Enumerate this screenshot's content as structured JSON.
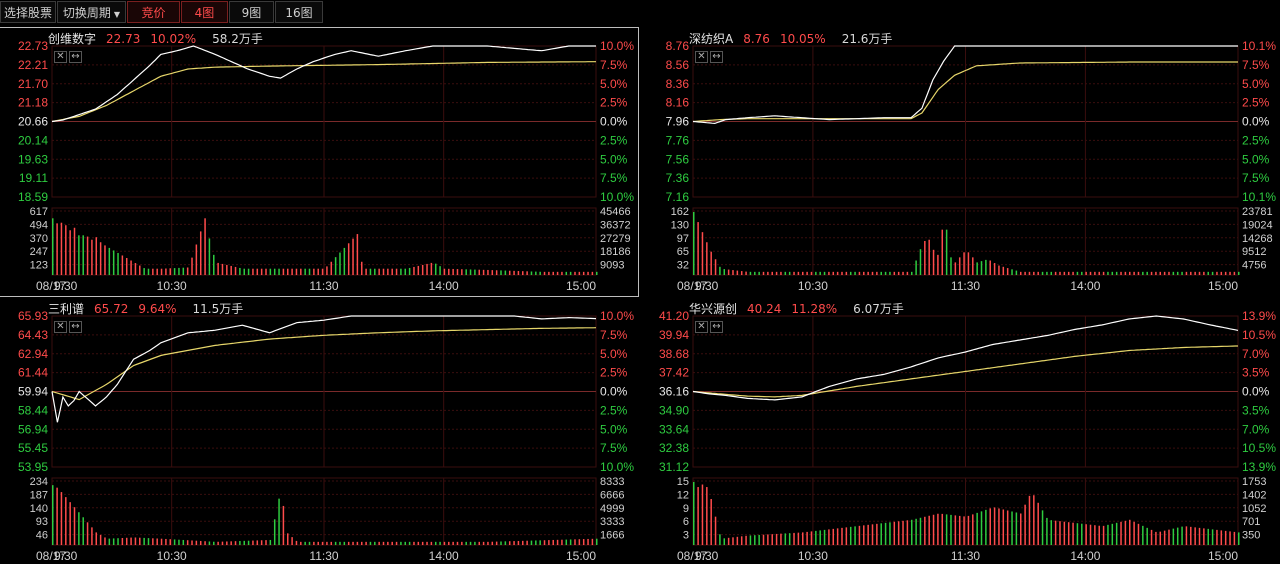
{
  "toolbar": {
    "select_stock": "选择股票",
    "switch_period": "切换周期",
    "auction": "竞价",
    "grid4": "4图",
    "grid9": "9图",
    "grid16": "16图"
  },
  "colors": {
    "up": "#ff4b4b",
    "down": "#2ecc40",
    "price_line": "#ffffff",
    "avg_line": "#e6d66a",
    "grid": "#3a0e0e"
  },
  "time_axis": {
    "date": "08/17",
    "labels": [
      "9:30",
      "10:30",
      "11:30",
      "14:00",
      "15:00"
    ]
  },
  "panels": [
    {
      "name": "创维数字",
      "price": "22.73",
      "change_pct": "10.02%",
      "volume": "58.2万手",
      "price_axis": [
        "22.73",
        "22.21",
        "21.70",
        "21.18",
        "20.66",
        "20.14",
        "19.63",
        "19.11",
        "18.59"
      ],
      "pct_axis": [
        "10.0%",
        "7.5%",
        "5.0%",
        "2.5%",
        "0.0%",
        "2.5%",
        "5.0%",
        "7.5%",
        "10.0%"
      ],
      "vol_axis_left": [
        "617",
        "494",
        "370",
        "247",
        "123"
      ],
      "vol_axis_right": [
        "45466",
        "36372",
        "27279",
        "18186",
        "9093"
      ],
      "selected": true,
      "series": {
        "price": [
          [
            0,
            20.66
          ],
          [
            2,
            20.7
          ],
          [
            5,
            20.85
          ],
          [
            8,
            21.0
          ],
          [
            10,
            21.2
          ],
          [
            12,
            21.4
          ],
          [
            15,
            21.8
          ],
          [
            18,
            22.2
          ],
          [
            20,
            22.5
          ],
          [
            23,
            22.6
          ],
          [
            26,
            22.73
          ],
          [
            30,
            22.5
          ],
          [
            33,
            22.3
          ],
          [
            36,
            22.1
          ],
          [
            40,
            21.9
          ],
          [
            42,
            21.85
          ],
          [
            45,
            22.1
          ],
          [
            48,
            22.3
          ],
          [
            52,
            22.5
          ],
          [
            55,
            22.6
          ],
          [
            60,
            22.45
          ],
          [
            65,
            22.6
          ],
          [
            70,
            22.73
          ],
          [
            80,
            22.73
          ],
          [
            90,
            22.6
          ],
          [
            95,
            22.73
          ],
          [
            100,
            22.73
          ]
        ],
        "avg": [
          [
            0,
            20.66
          ],
          [
            5,
            20.8
          ],
          [
            10,
            21.1
          ],
          [
            15,
            21.5
          ],
          [
            20,
            21.9
          ],
          [
            25,
            22.1
          ],
          [
            30,
            22.15
          ],
          [
            40,
            22.18
          ],
          [
            60,
            22.22
          ],
          [
            80,
            22.28
          ],
          [
            100,
            22.3
          ]
        ],
        "vol": [
          [
            0,
            0.9
          ],
          [
            1,
            0.8
          ],
          [
            2,
            0.85
          ],
          [
            3,
            0.7
          ],
          [
            4,
            0.75
          ],
          [
            5,
            0.6
          ],
          [
            6,
            0.65
          ],
          [
            7,
            0.55
          ],
          [
            8,
            0.6
          ],
          [
            9,
            0.5
          ],
          [
            10,
            0.45
          ],
          [
            11,
            0.4
          ],
          [
            12,
            0.35
          ],
          [
            13,
            0.3
          ],
          [
            14,
            0.25
          ],
          [
            15,
            0.2
          ],
          [
            16,
            0.15
          ],
          [
            17,
            0.1
          ],
          [
            20,
            0.1
          ],
          [
            25,
            0.12
          ],
          [
            28,
            0.9
          ],
          [
            29,
            0.5
          ],
          [
            30,
            0.2
          ],
          [
            35,
            0.1
          ],
          [
            50,
            0.1
          ],
          [
            56,
            0.65
          ],
          [
            57,
            0.1
          ],
          [
            65,
            0.1
          ],
          [
            70,
            0.2
          ],
          [
            72,
            0.1
          ],
          [
            80,
            0.08
          ],
          [
            90,
            0.05
          ],
          [
            100,
            0.05
          ]
        ]
      }
    },
    {
      "name": "深纺织A",
      "price": "8.76",
      "change_pct": "10.05%",
      "volume": "21.6万手",
      "price_axis": [
        "8.76",
        "8.56",
        "8.36",
        "8.16",
        "7.96",
        "7.76",
        "7.56",
        "7.36",
        "7.16"
      ],
      "pct_axis": [
        "10.1%",
        "7.5%",
        "5.0%",
        "2.5%",
        "0.0%",
        "2.5%",
        "5.0%",
        "7.5%",
        "10.1%"
      ],
      "vol_axis_left": [
        "162",
        "130",
        "97",
        "65",
        "32"
      ],
      "vol_axis_right": [
        "23781",
        "19024",
        "14268",
        "9512",
        "4756"
      ],
      "selected": false,
      "series": {
        "price": [
          [
            0,
            7.96
          ],
          [
            2,
            7.95
          ],
          [
            4,
            7.94
          ],
          [
            6,
            7.98
          ],
          [
            10,
            8.0
          ],
          [
            15,
            8.02
          ],
          [
            20,
            8.0
          ],
          [
            25,
            7.98
          ],
          [
            30,
            7.99
          ],
          [
            35,
            8.0
          ],
          [
            40,
            8.0
          ],
          [
            42,
            8.1
          ],
          [
            44,
            8.4
          ],
          [
            46,
            8.6
          ],
          [
            48,
            8.76
          ],
          [
            50,
            8.76
          ],
          [
            60,
            8.76
          ],
          [
            80,
            8.76
          ],
          [
            100,
            8.76
          ]
        ],
        "avg": [
          [
            0,
            7.96
          ],
          [
            5,
            7.98
          ],
          [
            10,
            7.99
          ],
          [
            20,
            7.99
          ],
          [
            30,
            7.99
          ],
          [
            40,
            7.99
          ],
          [
            42,
            8.05
          ],
          [
            45,
            8.3
          ],
          [
            48,
            8.45
          ],
          [
            52,
            8.55
          ],
          [
            60,
            8.58
          ],
          [
            80,
            8.59
          ],
          [
            100,
            8.59
          ]
        ],
        "vol": [
          [
            0,
            1
          ],
          [
            1,
            0.8
          ],
          [
            2,
            0.6
          ],
          [
            3,
            0.4
          ],
          [
            5,
            0.1
          ],
          [
            10,
            0.05
          ],
          [
            40,
            0.05
          ],
          [
            42,
            0.5
          ],
          [
            43,
            0.6
          ],
          [
            44,
            0.4
          ],
          [
            45,
            0.3
          ],
          [
            46,
            1
          ],
          [
            47,
            0.3
          ],
          [
            48,
            0.2
          ],
          [
            50,
            0.4
          ],
          [
            52,
            0.2
          ],
          [
            54,
            0.25
          ],
          [
            56,
            0.15
          ],
          [
            58,
            0.1
          ],
          [
            60,
            0.05
          ],
          [
            100,
            0.05
          ]
        ]
      }
    },
    {
      "name": "三利谱",
      "price": "65.72",
      "change_pct": "9.64%",
      "volume": "11.5万手",
      "price_axis": [
        "65.93",
        "64.43",
        "62.94",
        "61.44",
        "59.94",
        "58.44",
        "56.94",
        "55.45",
        "53.95"
      ],
      "pct_axis": [
        "10.0%",
        "7.5%",
        "5.0%",
        "2.5%",
        "0.0%",
        "2.5%",
        "5.0%",
        "7.5%",
        "10.0%"
      ],
      "vol_axis_left": [
        "234",
        "187",
        "140",
        "93",
        "46"
      ],
      "vol_axis_right": [
        "8333",
        "6666",
        "4999",
        "3333",
        "1666"
      ],
      "selected": false,
      "series": {
        "price": [
          [
            0,
            59.94
          ],
          [
            1,
            57.5
          ],
          [
            2,
            59.5
          ],
          [
            3,
            58.8
          ],
          [
            4,
            59.2
          ],
          [
            5,
            59.94
          ],
          [
            8,
            58.8
          ],
          [
            10,
            59.5
          ],
          [
            12,
            60.5
          ],
          [
            15,
            62.5
          ],
          [
            18,
            63.2
          ],
          [
            20,
            63.8
          ],
          [
            25,
            64.6
          ],
          [
            30,
            64.8
          ],
          [
            35,
            65.2
          ],
          [
            40,
            64.6
          ],
          [
            45,
            65.4
          ],
          [
            50,
            65.6
          ],
          [
            55,
            65.93
          ],
          [
            60,
            65.93
          ],
          [
            70,
            65.93
          ],
          [
            80,
            65.93
          ],
          [
            85,
            65.93
          ],
          [
            90,
            65.7
          ],
          [
            95,
            65.8
          ],
          [
            100,
            65.72
          ]
        ],
        "avg": [
          [
            0,
            59.94
          ],
          [
            5,
            59.3
          ],
          [
            10,
            60.5
          ],
          [
            15,
            62.0
          ],
          [
            20,
            62.8
          ],
          [
            30,
            63.6
          ],
          [
            40,
            64.1
          ],
          [
            50,
            64.4
          ],
          [
            60,
            64.6
          ],
          [
            70,
            64.75
          ],
          [
            80,
            64.85
          ],
          [
            90,
            64.95
          ],
          [
            100,
            65.0
          ]
        ],
        "vol": [
          [
            0,
            0.95
          ],
          [
            1,
            0.9
          ],
          [
            2,
            0.8
          ],
          [
            3,
            0.7
          ],
          [
            4,
            0.6
          ],
          [
            5,
            0.5
          ],
          [
            6,
            0.4
          ],
          [
            7,
            0.3
          ],
          [
            8,
            0.2
          ],
          [
            9,
            0.15
          ],
          [
            10,
            0.1
          ],
          [
            15,
            0.12
          ],
          [
            20,
            0.1
          ],
          [
            30,
            0.05
          ],
          [
            40,
            0.08
          ],
          [
            42,
            0.9
          ],
          [
            43,
            0.2
          ],
          [
            45,
            0.05
          ],
          [
            60,
            0.05
          ],
          [
            80,
            0.05
          ],
          [
            100,
            0.1
          ]
        ]
      }
    },
    {
      "name": "华兴源创",
      "price": "40.24",
      "change_pct": "11.28%",
      "volume": "6.07万手",
      "price_axis": [
        "41.20",
        "39.94",
        "38.68",
        "37.42",
        "36.16",
        "34.90",
        "33.64",
        "32.38",
        "31.12"
      ],
      "pct_axis": [
        "13.9%",
        "10.5%",
        "7.0%",
        "3.5%",
        "0.0%",
        "3.5%",
        "7.0%",
        "10.5%",
        "13.9%"
      ],
      "vol_axis_left": [
        "15",
        "12",
        "9",
        "6",
        "3"
      ],
      "vol_axis_right": [
        "1753",
        "1402",
        "1052",
        "701",
        "350"
      ],
      "selected": false,
      "series": {
        "price": [
          [
            0,
            36.16
          ],
          [
            3,
            36.0
          ],
          [
            6,
            35.9
          ],
          [
            10,
            35.7
          ],
          [
            15,
            35.6
          ],
          [
            20,
            35.8
          ],
          [
            25,
            36.5
          ],
          [
            30,
            37.0
          ],
          [
            35,
            37.3
          ],
          [
            40,
            37.8
          ],
          [
            45,
            38.4
          ],
          [
            50,
            38.8
          ],
          [
            55,
            39.3
          ],
          [
            60,
            39.6
          ],
          [
            65,
            39.9
          ],
          [
            70,
            40.3
          ],
          [
            75,
            40.6
          ],
          [
            80,
            41.0
          ],
          [
            85,
            41.2
          ],
          [
            90,
            41.0
          ],
          [
            95,
            40.6
          ],
          [
            100,
            40.24
          ]
        ],
        "avg": [
          [
            0,
            36.16
          ],
          [
            5,
            36.0
          ],
          [
            10,
            35.85
          ],
          [
            15,
            35.8
          ],
          [
            20,
            35.9
          ],
          [
            25,
            36.2
          ],
          [
            30,
            36.5
          ],
          [
            40,
            37.0
          ],
          [
            50,
            37.5
          ],
          [
            60,
            38.0
          ],
          [
            70,
            38.5
          ],
          [
            80,
            38.9
          ],
          [
            90,
            39.1
          ],
          [
            100,
            39.2
          ]
        ],
        "vol": [
          [
            0,
            1
          ],
          [
            1,
            0.9
          ],
          [
            2,
            1
          ],
          [
            3,
            0.8
          ],
          [
            5,
            0.1
          ],
          [
            10,
            0.15
          ],
          [
            20,
            0.2
          ],
          [
            30,
            0.3
          ],
          [
            40,
            0.4
          ],
          [
            45,
            0.5
          ],
          [
            50,
            0.45
          ],
          [
            55,
            0.6
          ],
          [
            60,
            0.5
          ],
          [
            62,
            0.85
          ],
          [
            65,
            0.4
          ],
          [
            70,
            0.35
          ],
          [
            75,
            0.3
          ],
          [
            80,
            0.4
          ],
          [
            85,
            0.2
          ],
          [
            90,
            0.3
          ],
          [
            95,
            0.25
          ],
          [
            100,
            0.2
          ]
        ]
      }
    }
  ]
}
